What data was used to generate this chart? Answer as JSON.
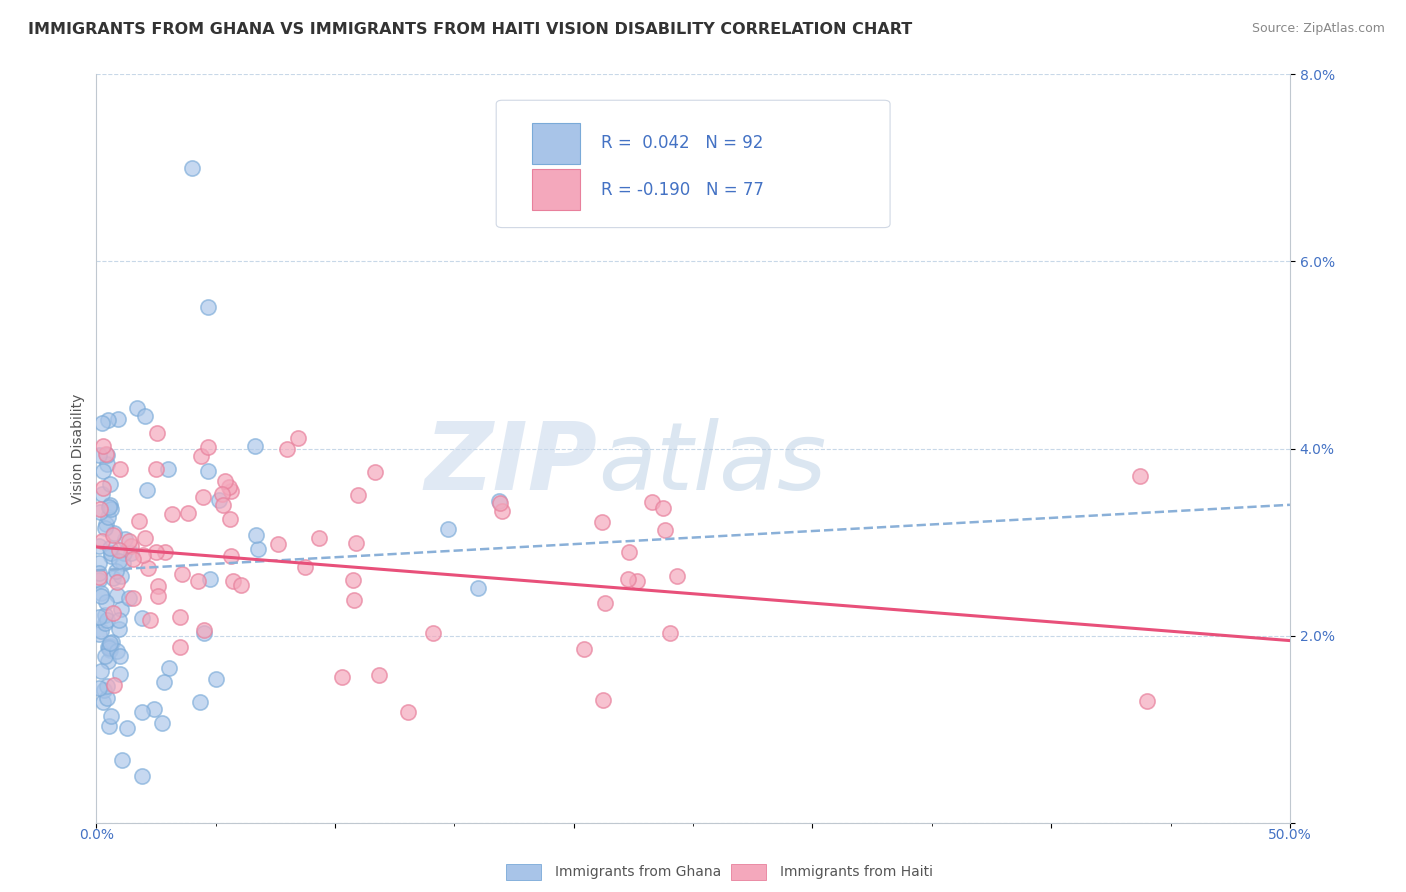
{
  "title": "IMMIGRANTS FROM GHANA VS IMMIGRANTS FROM HAITI VISION DISABILITY CORRELATION CHART",
  "source": "Source: ZipAtlas.com",
  "ylabel": "Vision Disability",
  "xlim": [
    0,
    0.5
  ],
  "ylim": [
    0,
    0.08
  ],
  "ghana_R": 0.042,
  "ghana_N": 92,
  "haiti_R": -0.19,
  "haiti_N": 77,
  "ghana_color": "#a8c4e8",
  "ghana_edge_color": "#7aaad8",
  "haiti_color": "#f4a8bc",
  "haiti_edge_color": "#e8809c",
  "ghana_line_color": "#8ab0d8",
  "haiti_line_color": "#e8507a",
  "watermark_zip": "ZIP",
  "watermark_atlas": "atlas",
  "legend_r_color": "#4472c4",
  "title_fontsize": 11.5,
  "axis_label_color": "#4472c4",
  "background_color": "#ffffff",
  "grid_color": "#c8d8e8",
  "ghana_line_start_y": 0.027,
  "ghana_line_end_y": 0.034,
  "haiti_line_start_y": 0.0295,
  "haiti_line_end_y": 0.0195,
  "x_left_label": "0.0%",
  "x_right_label": "50.0%"
}
